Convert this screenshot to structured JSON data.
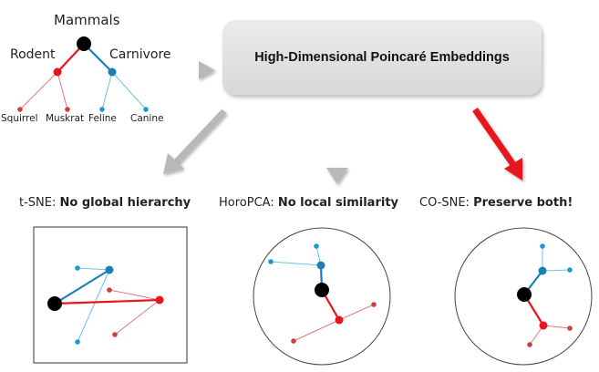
{
  "tree": {
    "root": "Mammals",
    "left_child": "Rodent",
    "right_child": "Carnivore",
    "leaves": [
      "Squirrel",
      "Muskrat",
      "Feline",
      "Canine"
    ]
  },
  "embedding_box": {
    "title": "High-Dimensional Poincaré Embeddings"
  },
  "panels": [
    {
      "method": "t-SNE:",
      "verdict": "No global hierarchy"
    },
    {
      "method": "HoroPCA:",
      "verdict": "No local similarity"
    },
    {
      "method": "CO-SNE:",
      "verdict": "Preserve both!"
    }
  ],
  "colors": {
    "rodent_red": "#e8161b",
    "rodent_light": "#e07a7a",
    "carnivore_blue": "#1a7fb5",
    "carnivore_light": "#6ec0e6",
    "root_black": "#000000",
    "arrow_gray": "#b8b8b8",
    "arrow_red": "#e8161b"
  }
}
